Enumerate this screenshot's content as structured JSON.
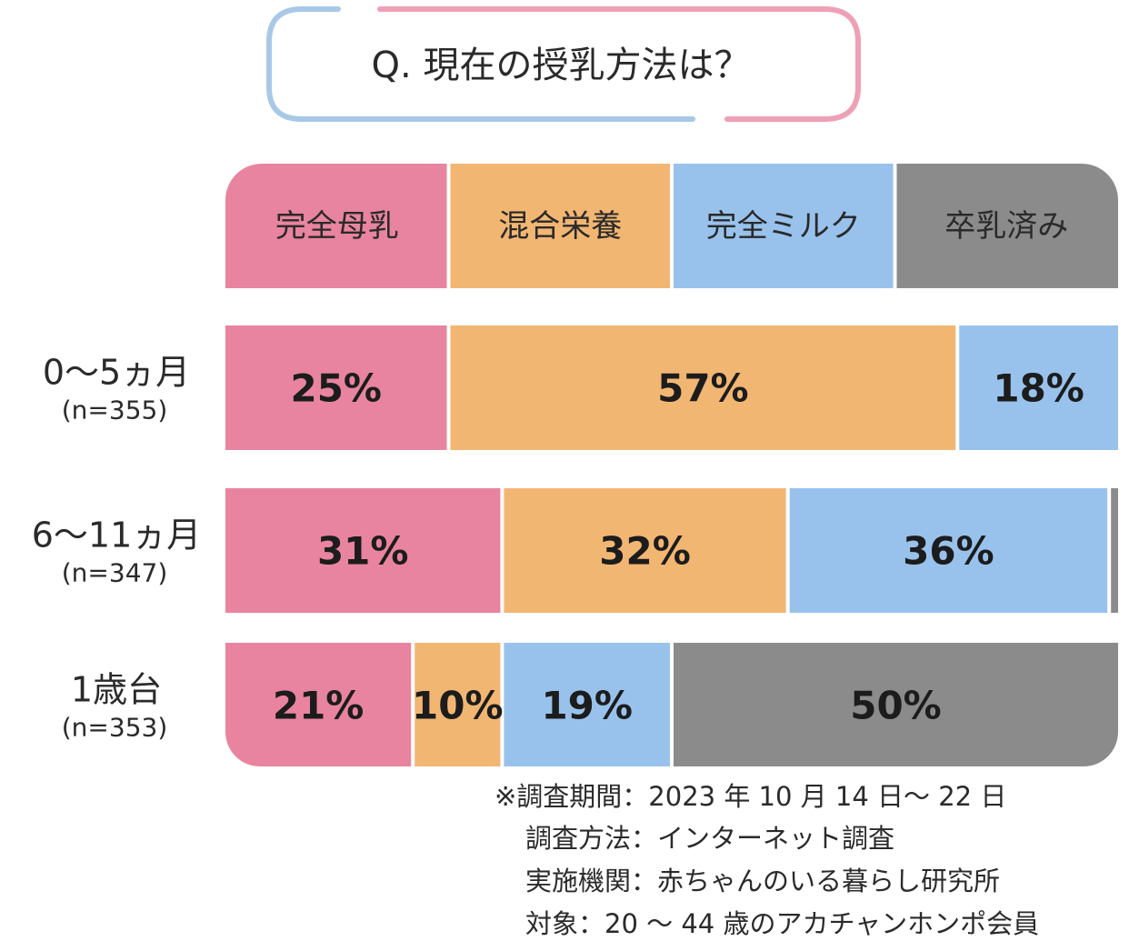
{
  "colors": {
    "breast": "#e8849f",
    "mixed": "#f2b673",
    "milk": "#98c2ec",
    "weaned": "#8b8b8b",
    "title_frame_blue": "#a9c8e8",
    "title_frame_pink": "#eea0b6"
  },
  "chart_data": {
    "type": "bar",
    "orientation": "horizontal-stacked-100",
    "title": "Q. 現在の授乳方法は？",
    "categories": [
      "0～5ヵ月",
      "6～11ヵ月",
      "1歳台"
    ],
    "sample_sizes": [
      "(n=355)",
      "(n=347)",
      "(n=353)"
    ],
    "series": [
      {
        "name": "完全母乳",
        "color": "#e8849f",
        "values": [
          25,
          31,
          21
        ],
        "labels": [
          "25%",
          "31%",
          "21%"
        ]
      },
      {
        "name": "混合栄養",
        "color": "#f2b673",
        "values": [
          57,
          32,
          10
        ],
        "labels": [
          "57%",
          "32%",
          "10%"
        ]
      },
      {
        "name": "完全ミルク",
        "color": "#98c2ec",
        "values": [
          18,
          36,
          19
        ],
        "labels": [
          "18%",
          "36%",
          "19%"
        ]
      },
      {
        "name": "卒乳済み",
        "color": "#8b8b8b",
        "values": [
          0,
          1,
          50
        ],
        "labels": [
          "",
          "",
          "50%"
        ]
      }
    ],
    "xlim": [
      0,
      100
    ]
  },
  "notes": [
    "※調査期間：2023 年 10 月 14 日～ 22 日",
    "調査方法：インターネット調査",
    "実施機関：赤ちゃんのいる暮らし研究所",
    "対象：20 ～ 44 歳のアカチャンホンポ会員"
  ]
}
